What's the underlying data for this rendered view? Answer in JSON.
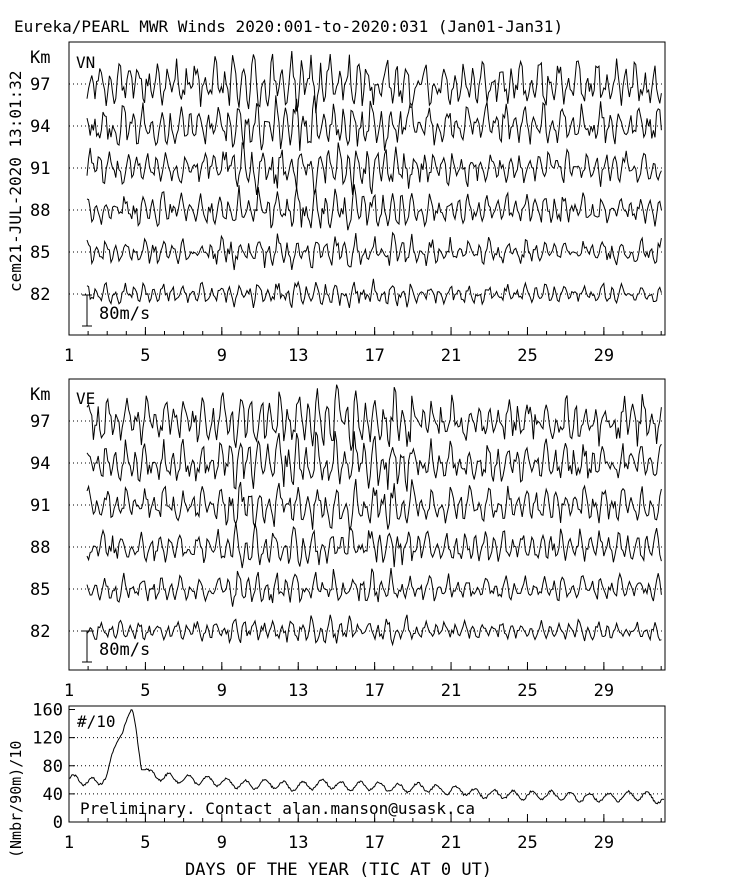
{
  "title": "Eureka/PEARL MWR Winds 2020:001-to-2020:031 (Jan01-Jan31)",
  "side_label": "cem21-JUL-2020 13:01:32",
  "footer_note": "Preliminary. Contact alan.manson@usask.ca",
  "colors": {
    "trace": "#000000",
    "gridline": "#000000",
    "background": "#ffffff"
  },
  "chart_data": [
    {
      "type": "line",
      "panel": "VN",
      "panel_label": "VN",
      "unit_label": "Km",
      "scale_bar_label": "80m/s",
      "ylabel": "",
      "x_ticks": [
        "1",
        "5",
        "9",
        "13",
        "17",
        "21",
        "25",
        "29"
      ],
      "x_range": [
        1,
        32.2
      ],
      "y_tick_labels": [
        "97",
        "94",
        "91",
        "88",
        "85",
        "82"
      ],
      "series": [
        {
          "altitude_km": 97,
          "amplitude_ms": 80
        },
        {
          "altitude_km": 94,
          "amplitude_ms": 70
        },
        {
          "altitude_km": 91,
          "amplitude_ms": 60
        },
        {
          "altitude_km": 88,
          "amplitude_ms": 55
        },
        {
          "altitude_km": 85,
          "amplitude_ms": 45
        },
        {
          "altitude_km": 82,
          "amplitude_ms": 35
        }
      ],
      "grid": "dotted horizontal at each altitude"
    },
    {
      "type": "line",
      "panel": "VE",
      "panel_label": "VE",
      "unit_label": "Km",
      "scale_bar_label": "80m/s",
      "ylabel": "",
      "x_ticks": [
        "1",
        "5",
        "9",
        "13",
        "17",
        "21",
        "25",
        "29"
      ],
      "x_range": [
        1,
        32.2
      ],
      "y_tick_labels": [
        "97",
        "94",
        "91",
        "88",
        "85",
        "82"
      ],
      "series": [
        {
          "altitude_km": 97,
          "amplitude_ms": 80
        },
        {
          "altitude_km": 94,
          "amplitude_ms": 70
        },
        {
          "altitude_km": 91,
          "amplitude_ms": 60
        },
        {
          "altitude_km": 88,
          "amplitude_ms": 55
        },
        {
          "altitude_km": 85,
          "amplitude_ms": 45
        },
        {
          "altitude_km": 82,
          "amplitude_ms": 35
        }
      ],
      "grid": "dotted horizontal at each altitude"
    },
    {
      "type": "line",
      "panel": "count",
      "panel_label": "#/10",
      "ylabel": "(Nmbr/90m)/10",
      "xlabel": "DAYS OF THE YEAR (TIC AT 0 UT)",
      "x_ticks": [
        "1",
        "5",
        "9",
        "13",
        "17",
        "21",
        "25",
        "29"
      ],
      "x_range": [
        1,
        32.2
      ],
      "y_ticks": [
        0,
        40,
        80,
        120,
        160
      ],
      "y_tick_labels": [
        "0",
        "40",
        "80",
        "120",
        "160"
      ],
      "ylim": [
        0,
        165
      ],
      "grid": "dotted horizontal at 40, 80, 120",
      "series": [
        {
          "name": "",
          "x": [
            1.0,
            1.5,
            2.0,
            2.5,
            3.0,
            3.3,
            3.6,
            3.9,
            4.1,
            4.3,
            4.5,
            4.8,
            5.2,
            5.8,
            6.5,
            7.5,
            8.5,
            9.5,
            10.5,
            11.5,
            12.5,
            13.5,
            14.5,
            15.5,
            16.5,
            17.5,
            18.5,
            19.5,
            20.5,
            21.5,
            22.5,
            23.5,
            24.5,
            25.5,
            26.5,
            27.5,
            28.5,
            29.5,
            30.5,
            31.5,
            32.2
          ],
          "y": [
            62,
            60,
            58,
            55,
            68,
            95,
            120,
            140,
            148,
            155,
            135,
            80,
            68,
            65,
            62,
            60,
            58,
            55,
            52,
            55,
            50,
            52,
            55,
            50,
            52,
            50,
            48,
            50,
            45,
            45,
            40,
            40,
            38,
            38,
            38,
            35,
            35,
            35,
            38,
            36,
            28
          ]
        }
      ]
    }
  ]
}
